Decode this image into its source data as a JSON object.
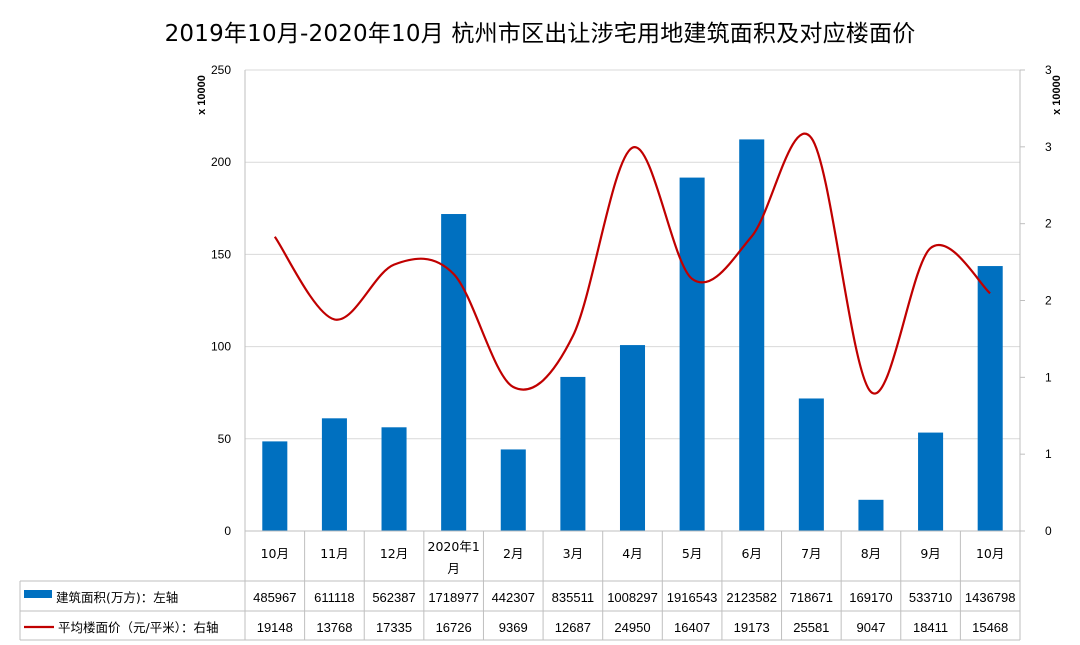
{
  "chart_data": {
    "type": "bar",
    "title": "2019年10月-2020年10月 杭州市区出让涉宅用地建筑面积及对应楼面价",
    "categories": [
      "10月",
      "11月",
      "12月",
      "2020年1月",
      "2月",
      "3月",
      "4月",
      "5月",
      "6月",
      "7月",
      "8月",
      "9月",
      "10月"
    ],
    "left_axis": {
      "ylim": [
        0,
        250
      ],
      "ticks": [
        "0",
        "50",
        "100",
        "150",
        "200",
        "250"
      ],
      "unit_label": "x 10000"
    },
    "right_axis": {
      "ylim": [
        0,
        3
      ],
      "ticks": [
        "0",
        "1",
        "1",
        "2",
        "2",
        "3",
        "3"
      ],
      "unit_label": "x 10000"
    },
    "grid": true,
    "legend_placement": "data-table",
    "series": [
      {
        "name": "建筑面积(万方)：左轴",
        "type": "bar",
        "axis": "left",
        "color": "#0070C0",
        "values": [
          485967,
          611118,
          562387,
          1718977,
          442307,
          835511,
          1008297,
          1916543,
          2123582,
          718671,
          169170,
          533710,
          1436798
        ],
        "labels": [
          "485967",
          "611118",
          "562387",
          "1718977",
          "442307",
          "835511",
          "1008297",
          "1916543",
          "2123582",
          "718671",
          "169170",
          "533710",
          "1436798"
        ]
      },
      {
        "name": "平均楼面价（元/平米）：右轴",
        "type": "line",
        "smooth": true,
        "axis": "right",
        "color": "#C00000",
        "values": [
          19148,
          13768,
          17335,
          16726,
          9369,
          12687,
          24950,
          16407,
          19173,
          25581,
          9047,
          18411,
          15468
        ],
        "labels": [
          "19148",
          "13768",
          "17335",
          "16726",
          "9369",
          "12687",
          "24950",
          "16407",
          "19173",
          "25581",
          "9047",
          "18411",
          "15468"
        ]
      }
    ]
  }
}
